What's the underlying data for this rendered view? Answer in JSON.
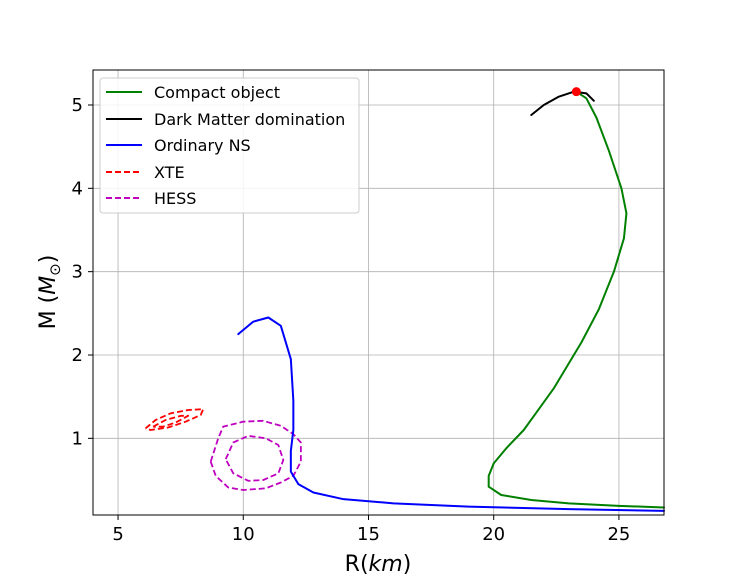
{
  "chart_data": {
    "type": "line",
    "xlabel_prefix": "R(",
    "xlabel_unit": "km",
    "xlabel_suffix": ")",
    "ylabel_prefix": "M (",
    "ylabel_unit": "M",
    "ylabel_sub": "⊙",
    "ylabel_suffix": ")",
    "xlim": [
      4,
      26.8
    ],
    "ylim": [
      0.08,
      5.42
    ],
    "xticks": [
      5,
      10,
      15,
      20,
      25
    ],
    "yticks": [
      1,
      2,
      3,
      4,
      5
    ],
    "grid": true,
    "legend_position": "top-left",
    "series": [
      {
        "name": "Compact object",
        "color": "#008000",
        "dash": "solid",
        "x": [
          26.8,
          25.0,
          23.0,
          21.5,
          20.3,
          19.8,
          19.8,
          20.0,
          20.5,
          21.2,
          21.8,
          22.4,
          22.9,
          23.5,
          24.2,
          24.8,
          25.2,
          25.3,
          25.1,
          24.6,
          24.1,
          23.7,
          23.3
        ],
        "y": [
          0.17,
          0.19,
          0.22,
          0.26,
          0.32,
          0.42,
          0.55,
          0.7,
          0.88,
          1.1,
          1.35,
          1.6,
          1.85,
          2.15,
          2.55,
          3.0,
          3.4,
          3.7,
          4.0,
          4.45,
          4.85,
          5.08,
          5.16
        ]
      },
      {
        "name": "Dark Matter domination",
        "color": "#000000",
        "dash": "solid",
        "x": [
          21.5,
          22.0,
          22.6,
          23.2,
          23.7,
          24.0
        ],
        "y": [
          4.88,
          5.0,
          5.1,
          5.16,
          5.14,
          5.05
        ]
      },
      {
        "name": "Ordinary NS",
        "color": "#0000ff",
        "dash": "solid",
        "x": [
          9.8,
          10.4,
          11.0,
          11.5,
          11.9,
          12.0,
          12.0,
          11.9,
          11.9,
          12.2,
          12.8,
          14.0,
          16.0,
          19.0,
          23.0,
          26.8
        ],
        "y": [
          2.25,
          2.4,
          2.45,
          2.35,
          1.95,
          1.45,
          1.1,
          0.85,
          0.6,
          0.45,
          0.35,
          0.27,
          0.22,
          0.18,
          0.15,
          0.13
        ]
      }
    ],
    "critical_point": {
      "x": 23.3,
      "y": 5.16,
      "color": "#ff0000"
    },
    "contours": [
      {
        "name": "XTE",
        "color": "#ff0000",
        "shapes": [
          {
            "x": [
              6.1,
              6.5,
              7.1,
              7.8,
              8.4,
              8.3,
              7.7,
              7.0,
              6.3,
              6.1
            ],
            "y": [
              1.12,
              1.22,
              1.3,
              1.34,
              1.35,
              1.28,
              1.2,
              1.13,
              1.1,
              1.12
            ]
          },
          {
            "x": [
              6.4,
              6.9,
              7.5,
              7.8,
              7.3,
              6.8,
              6.4
            ],
            "y": [
              1.14,
              1.22,
              1.27,
              1.27,
              1.19,
              1.14,
              1.14
            ]
          }
        ]
      },
      {
        "name": "HESS",
        "color": "#c000c0",
        "shapes": [
          {
            "x": [
              8.7,
              9.0,
              9.2,
              10.0,
              10.8,
              11.5,
              12.0,
              12.3,
              12.3,
              12.0,
              11.5,
              10.9,
              10.0,
              9.4,
              8.9,
              8.7
            ],
            "y": [
              0.72,
              1.0,
              1.14,
              1.2,
              1.21,
              1.15,
              1.05,
              0.95,
              0.72,
              0.55,
              0.47,
              0.4,
              0.38,
              0.41,
              0.55,
              0.72
            ]
          },
          {
            "x": [
              9.3,
              9.6,
              10.2,
              10.9,
              11.4,
              11.6,
              11.4,
              10.8,
              10.2,
              9.6,
              9.3
            ],
            "y": [
              0.75,
              0.95,
              1.03,
              1.0,
              0.92,
              0.74,
              0.58,
              0.5,
              0.49,
              0.58,
              0.75
            ]
          }
        ]
      }
    ]
  }
}
